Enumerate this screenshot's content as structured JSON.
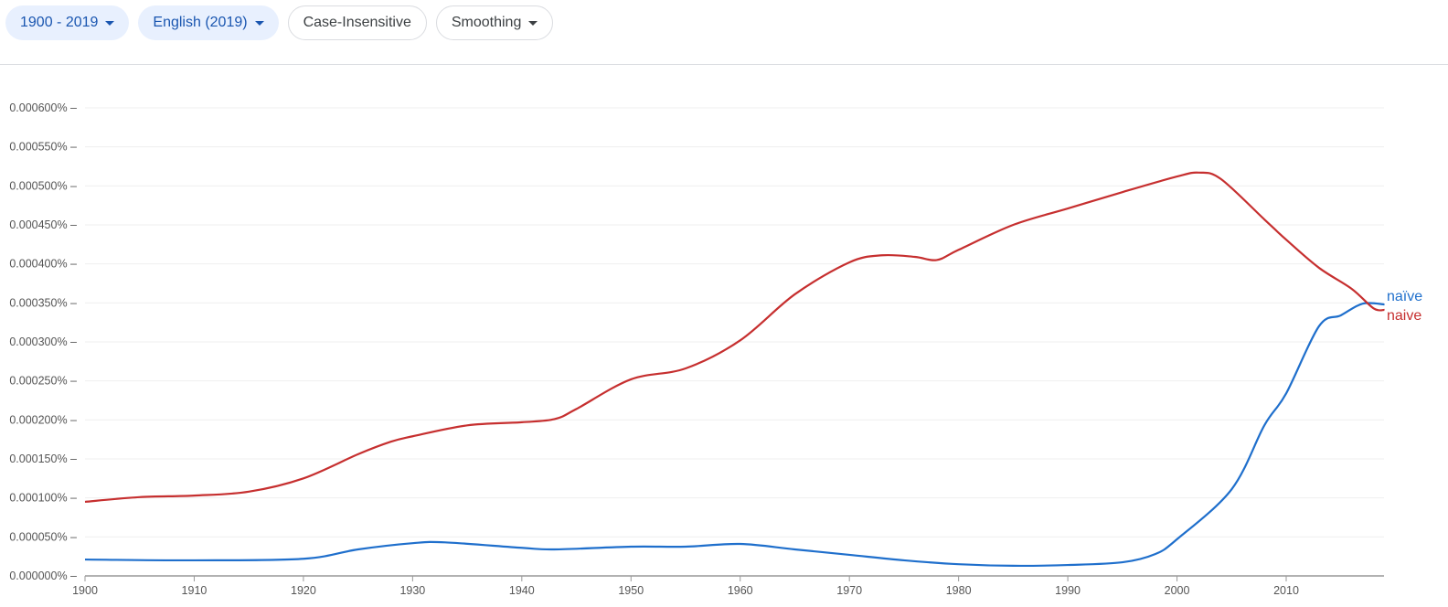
{
  "toolbar": {
    "year_range": "1900 - 2019",
    "corpus": "English (2019)",
    "case": "Case-Insensitive",
    "smoothing": "Smoothing"
  },
  "chart_data": {
    "type": "line",
    "xlim": [
      1900,
      2019
    ],
    "ylim": [
      0,
      0.0006
    ],
    "grid": true,
    "legend": "right-end labels",
    "x_ticks": [
      "1900",
      "1910",
      "1920",
      "1930",
      "1940",
      "1950",
      "1960",
      "1970",
      "1980",
      "1990",
      "2000",
      "2010"
    ],
    "y_ticks": [
      "0.000000%",
      "0.000050%",
      "0.000100%",
      "0.000150%",
      "0.000200%",
      "0.000250%",
      "0.000300%",
      "0.000350%",
      "0.000400%",
      "0.000450%",
      "0.000500%",
      "0.000550%",
      "0.000600%"
    ],
    "series": [
      {
        "name": "naïve",
        "color": "#1f6fcc",
        "x": [
          1900,
          1910,
          1920,
          1925,
          1930,
          1933,
          1940,
          1943,
          1950,
          1955,
          1960,
          1965,
          1970,
          1975,
          1980,
          1985,
          1990,
          1995,
          1998,
          2000,
          2005,
          2008,
          2010,
          2013,
          2015,
          2017,
          2019
        ],
        "y": [
          2.1e-05,
          2e-05,
          2.2e-05,
          3.4e-05,
          4.2e-05,
          4.3e-05,
          3.6e-05,
          3.4e-05,
          3.75e-05,
          3.75e-05,
          4.1e-05,
          3.4e-05,
          2.7e-05,
          2e-05,
          1.5e-05,
          1.3e-05,
          1.4e-05,
          1.75e-05,
          2.8e-05,
          4.7e-05,
          0.000111,
          0.000193,
          0.000234,
          0.00032,
          0.000334,
          0.000349,
          0.000348
        ]
      },
      {
        "name": "naive",
        "color": "#c62f2f",
        "x": [
          1900,
          1905,
          1910,
          1915,
          1920,
          1925,
          1928,
          1930,
          1935,
          1940,
          1943,
          1945,
          1950,
          1955,
          1960,
          1965,
          1970,
          1973,
          1976,
          1978,
          1980,
          1985,
          1990,
          1995,
          2000,
          2002,
          2004,
          2008,
          2010,
          2013,
          2016,
          2018,
          2019
        ],
        "y": [
          9.5e-05,
          0.000101,
          0.000103,
          0.000108,
          0.000125,
          0.000156,
          0.000172,
          0.000179,
          0.000193,
          0.000197,
          0.000201,
          0.000214,
          0.000252,
          0.000266,
          0.000302,
          0.000361,
          0.000402,
          0.000411,
          0.000409,
          0.000405,
          0.000418,
          0.00045,
          0.000471,
          0.000492,
          0.000512,
          0.000517,
          0.000509,
          0.000457,
          0.000431,
          0.000395,
          0.000368,
          0.000343,
          0.000341
        ]
      }
    ]
  }
}
